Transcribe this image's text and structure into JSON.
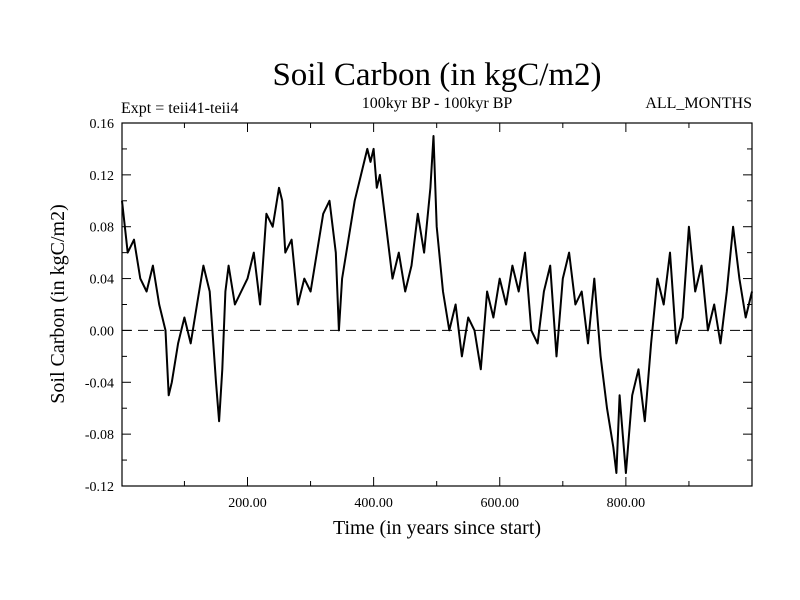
{
  "chart_data": {
    "type": "line",
    "title": "Soil Carbon (in kgC/m2)",
    "subtitle_left": "Expt = teii41-teii4",
    "subtitle_center": "100kyr BP - 100kyr BP",
    "subtitle_right": "ALL_MONTHS",
    "xlabel": "Time (in years since start)",
    "ylabel": "Soil Carbon (in kgC/m2)",
    "xlim": [
      1,
      1000
    ],
    "ylim": [
      -0.12,
      0.16
    ],
    "x_ticks": [
      200,
      400,
      600,
      800
    ],
    "x_tick_labels": [
      "200.00",
      "400.00",
      "600.00",
      "800.00"
    ],
    "y_ticks": [
      0.16,
      0.12,
      0.08,
      0.04,
      0.0,
      -0.04,
      -0.08,
      -0.12
    ],
    "y_tick_labels": [
      "0.16",
      "0.12",
      "0.08",
      "0.04",
      "0.00",
      "-0.04",
      "-0.08",
      "-0.12"
    ],
    "reference_line": {
      "y": 0.0,
      "style": "dashed"
    },
    "grid": false,
    "line_color": "#000000",
    "series": [
      {
        "x": [
          1,
          10,
          20,
          30,
          40,
          50,
          60,
          70,
          75,
          80,
          90,
          100,
          110,
          120,
          130,
          140,
          150,
          155,
          160,
          165,
          170,
          180,
          190,
          200,
          210,
          220,
          230,
          240,
          250,
          255,
          260,
          270,
          280,
          290,
          300,
          310,
          320,
          330,
          340,
          345,
          350,
          360,
          370,
          380,
          390,
          395,
          400,
          405,
          410,
          420,
          430,
          440,
          450,
          460,
          470,
          480,
          490,
          495,
          500,
          510,
          520,
          530,
          540,
          550,
          560,
          570,
          580,
          590,
          600,
          610,
          620,
          630,
          640,
          650,
          660,
          670,
          680,
          690,
          700,
          710,
          720,
          730,
          740,
          750,
          760,
          770,
          780,
          785,
          790,
          795,
          800,
          810,
          820,
          830,
          840,
          850,
          860,
          870,
          880,
          890,
          900,
          910,
          920,
          930,
          940,
          950,
          960,
          970,
          980,
          990,
          1000
        ],
        "y": [
          0.1,
          0.06,
          0.07,
          0.04,
          0.03,
          0.05,
          0.02,
          0.0,
          -0.05,
          -0.04,
          -0.01,
          0.01,
          -0.01,
          0.02,
          0.05,
          0.03,
          -0.04,
          -0.07,
          -0.03,
          0.03,
          0.05,
          0.02,
          0.03,
          0.04,
          0.06,
          0.02,
          0.09,
          0.08,
          0.11,
          0.1,
          0.06,
          0.07,
          0.02,
          0.04,
          0.03,
          0.06,
          0.09,
          0.1,
          0.06,
          0.0,
          0.04,
          0.07,
          0.1,
          0.12,
          0.14,
          0.13,
          0.14,
          0.11,
          0.12,
          0.08,
          0.04,
          0.06,
          0.03,
          0.05,
          0.09,
          0.06,
          0.11,
          0.15,
          0.08,
          0.03,
          0.0,
          0.02,
          -0.02,
          0.01,
          0.0,
          -0.03,
          0.03,
          0.01,
          0.04,
          0.02,
          0.05,
          0.03,
          0.06,
          0.0,
          -0.01,
          0.03,
          0.05,
          -0.02,
          0.04,
          0.06,
          0.02,
          0.03,
          -0.01,
          0.04,
          -0.02,
          -0.06,
          -0.09,
          -0.11,
          -0.05,
          -0.08,
          -0.11,
          -0.05,
          -0.03,
          -0.07,
          -0.01,
          0.04,
          0.02,
          0.06,
          -0.01,
          0.01,
          0.08,
          0.03,
          0.05,
          0.0,
          0.02,
          -0.01,
          0.03,
          0.08,
          0.04,
          0.01,
          0.03
        ]
      }
    ]
  }
}
